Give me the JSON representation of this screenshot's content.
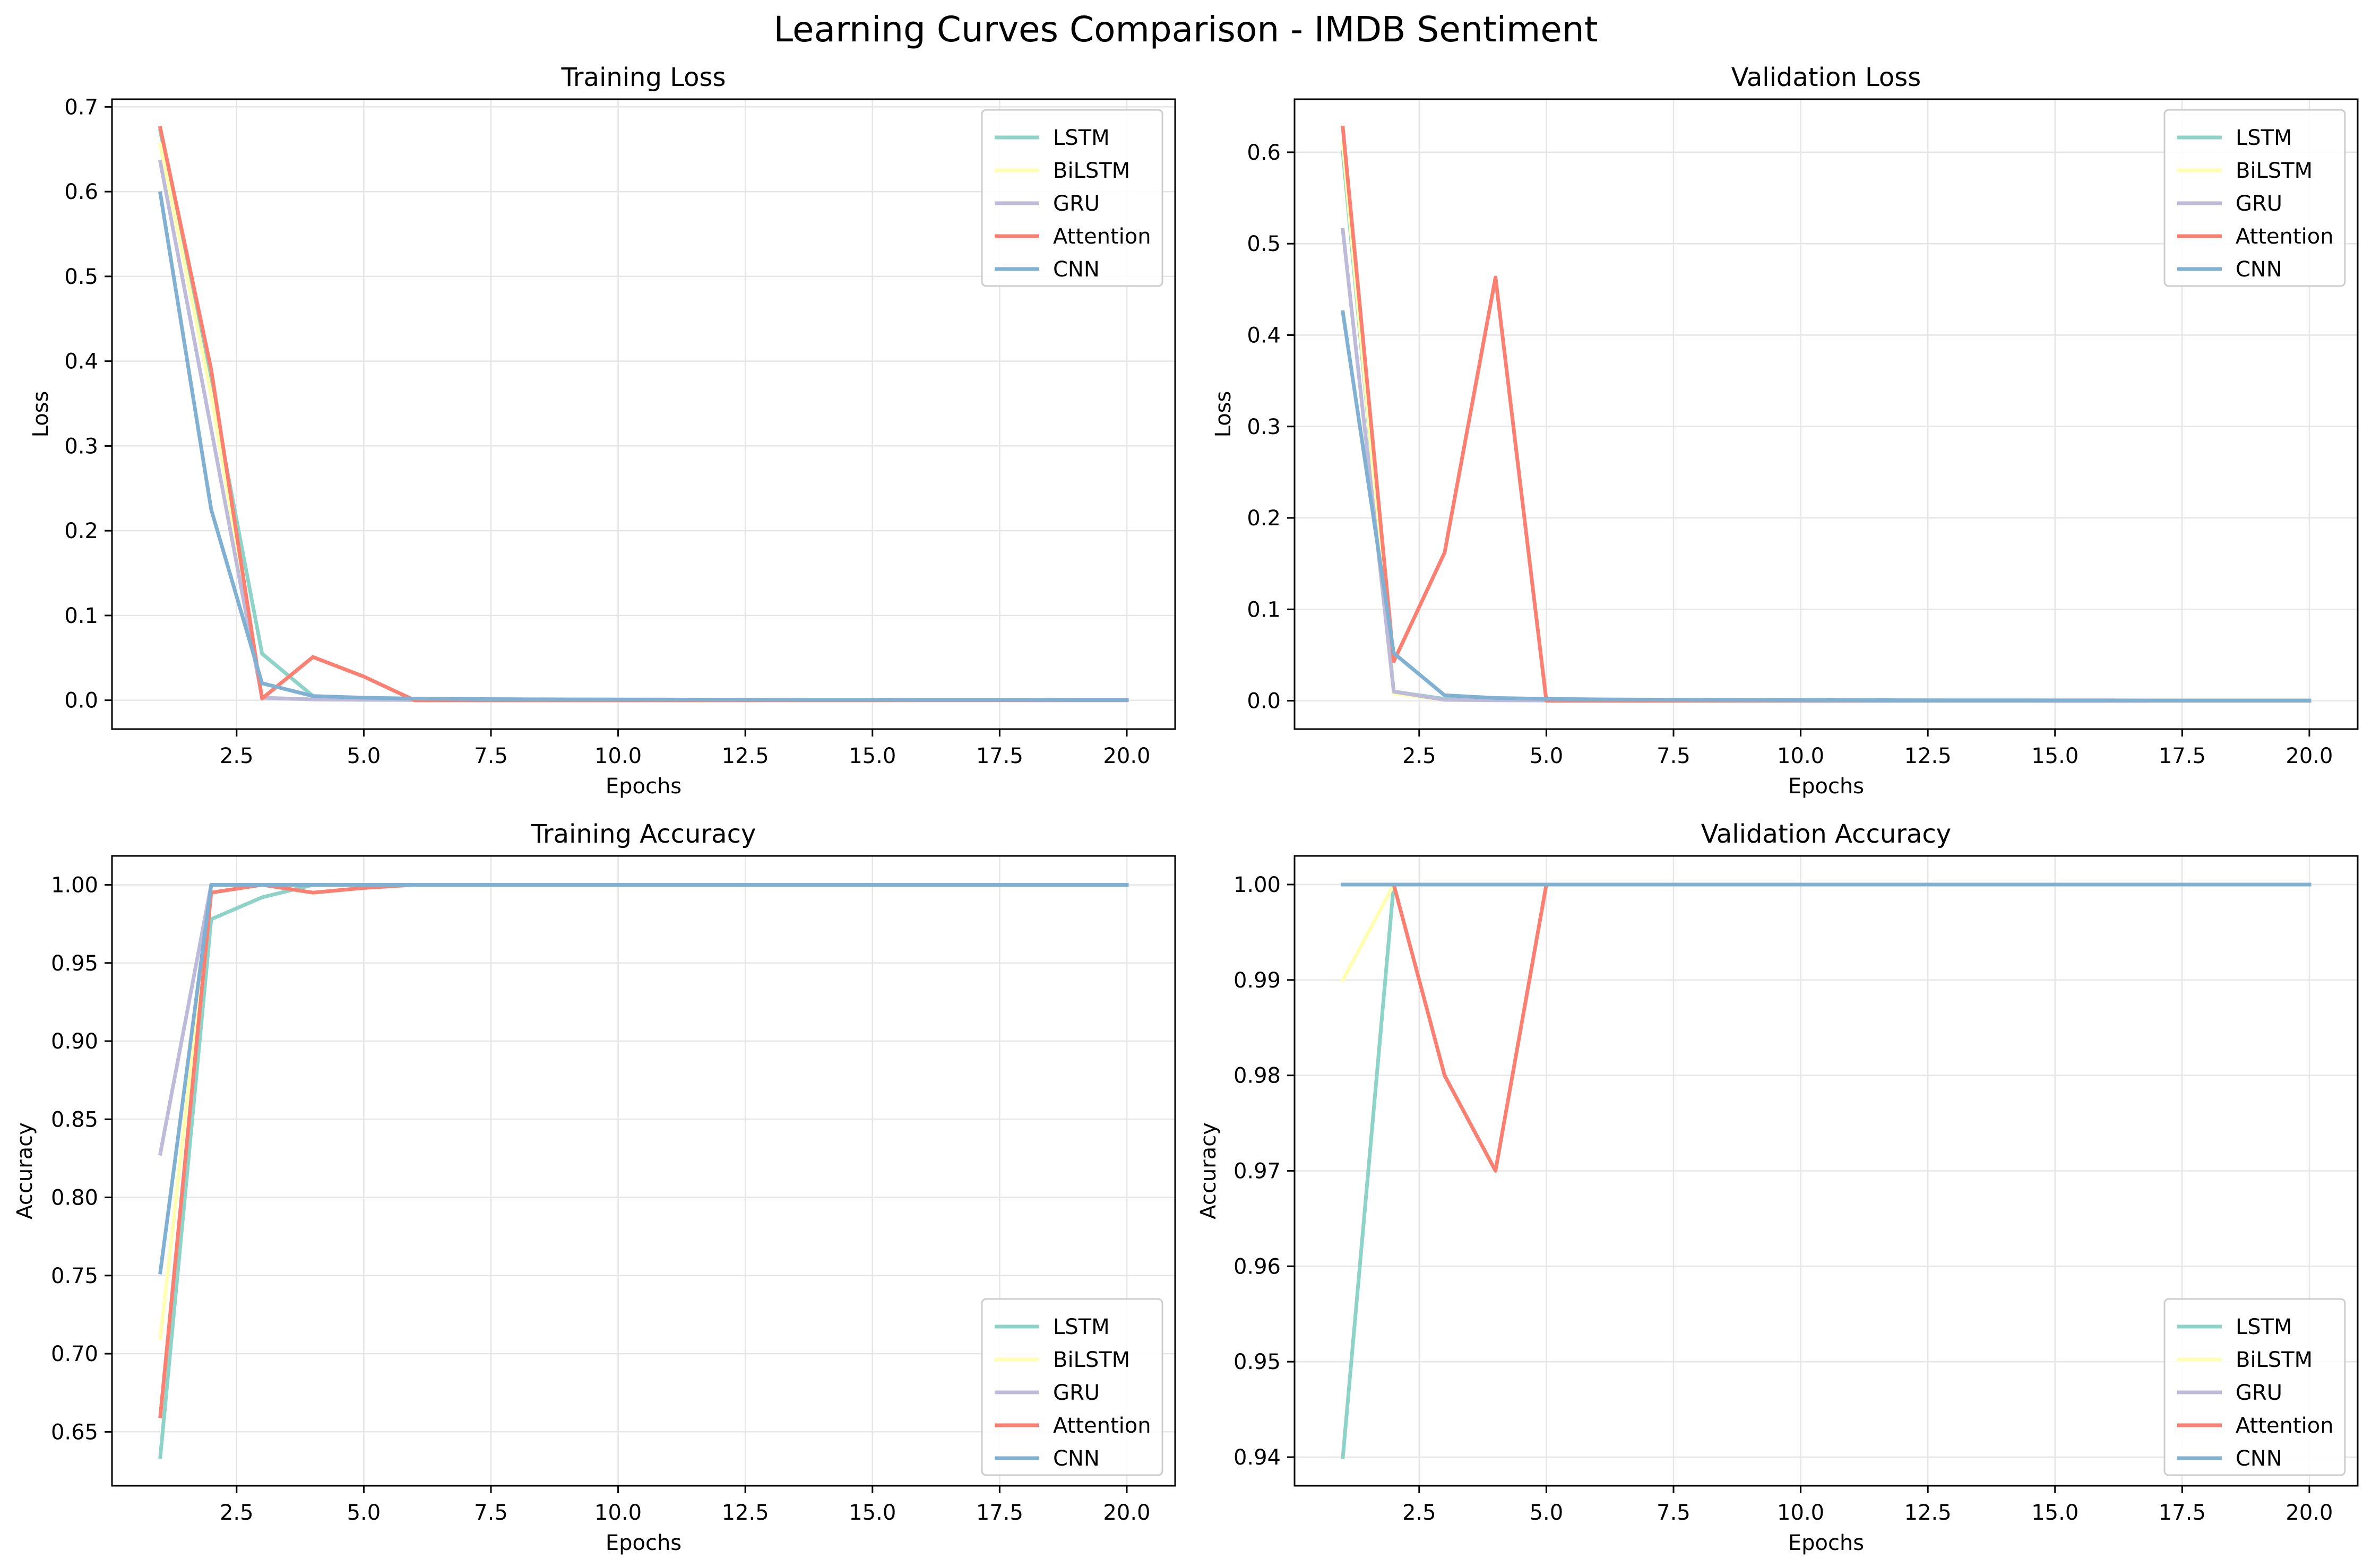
{
  "figure": {
    "title": "Learning Curves Comparison - IMDB Sentiment"
  },
  "colors": {
    "LSTM": "#8dd3c7",
    "BiLSTM": "#ffffb3",
    "GRU": "#bebada",
    "Attention": "#fb8072",
    "CNN": "#80b1d3",
    "grid": "#e6e6e6",
    "axis": "#000000"
  },
  "chart_data": [
    {
      "type": "line",
      "title": "Training Loss",
      "xlabel": "Epochs",
      "ylabel": "Loss",
      "xlim": [
        0.05,
        20.95
      ],
      "ylim": [
        -0.034,
        0.709
      ],
      "xticks": [
        2.5,
        5.0,
        7.5,
        10.0,
        12.5,
        15.0,
        17.5,
        20.0
      ],
      "xtick_labels": [
        "2.5",
        "5.0",
        "7.5",
        "10.0",
        "12.5",
        "15.0",
        "17.5",
        "20.0"
      ],
      "yticks": [
        0.0,
        0.1,
        0.2,
        0.3,
        0.4,
        0.5,
        0.6,
        0.7
      ],
      "ytick_labels": [
        "0.0",
        "0.1",
        "0.2",
        "0.3",
        "0.4",
        "0.5",
        "0.6",
        "0.7"
      ],
      "grid": true,
      "legend": "top-right",
      "x": [
        1,
        2,
        3,
        4,
        5,
        6,
        7,
        8,
        9,
        10,
        11,
        12,
        13,
        14,
        15,
        16,
        17,
        18,
        19,
        20
      ],
      "series": [
        {
          "name": "LSTM",
          "values": [
            0.672,
            0.37,
            0.055,
            0.005,
            0.002,
            0.001,
            0.001,
            0.001,
            0.001,
            0.0005,
            0.0005,
            0.0005,
            0.0004,
            0.0004,
            0.0003,
            0.0003,
            0.0003,
            0.0002,
            0.0002,
            0.0002
          ]
        },
        {
          "name": "BiLSTM",
          "values": [
            0.655,
            0.36,
            0.003,
            0.001,
            0.0005,
            0.0003,
            0.0002,
            0.0002,
            0.0001,
            0.0001,
            0.0001,
            0.0001,
            0.0001,
            0.0001,
            0.0001,
            0.0001,
            0.0001,
            0.0001,
            0.0001,
            0.0001
          ]
        },
        {
          "name": "GRU",
          "values": [
            0.635,
            0.32,
            0.003,
            0.001,
            0.0005,
            0.0003,
            0.0002,
            0.0002,
            0.0001,
            0.0001,
            0.0001,
            0.0001,
            0.0001,
            0.0001,
            0.0001,
            0.0001,
            0.0001,
            0.0001,
            0.0001,
            0.0001
          ]
        },
        {
          "name": "Attention",
          "values": [
            0.675,
            0.39,
            0.002,
            0.051,
            0.028,
            0.0,
            0.0,
            0.0,
            0.0,
            0.0,
            0.0,
            0.0,
            0.0,
            0.0,
            0.0,
            0.0,
            0.0,
            0.0,
            0.0,
            0.0
          ]
        },
        {
          "name": "CNN",
          "values": [
            0.598,
            0.225,
            0.02,
            0.005,
            0.003,
            0.002,
            0.0015,
            0.0012,
            0.001,
            0.0009,
            0.0008,
            0.0007,
            0.0006,
            0.0005,
            0.0005,
            0.0004,
            0.0004,
            0.0004,
            0.0003,
            0.0003
          ]
        }
      ]
    },
    {
      "type": "line",
      "title": "Validation Loss",
      "xlabel": "Epochs",
      "ylabel": "Loss",
      "xlim": [
        0.05,
        20.95
      ],
      "ylim": [
        -0.031,
        0.658
      ],
      "xticks": [
        2.5,
        5.0,
        7.5,
        10.0,
        12.5,
        15.0,
        17.5,
        20.0
      ],
      "xtick_labels": [
        "2.5",
        "5.0",
        "7.5",
        "10.0",
        "12.5",
        "15.0",
        "17.5",
        "20.0"
      ],
      "yticks": [
        0.0,
        0.1,
        0.2,
        0.3,
        0.4,
        0.5,
        0.6
      ],
      "ytick_labels": [
        "0.0",
        "0.1",
        "0.2",
        "0.3",
        "0.4",
        "0.5",
        "0.6"
      ],
      "grid": true,
      "legend": "top-right",
      "x": [
        1,
        2,
        3,
        4,
        5,
        6,
        7,
        8,
        9,
        10,
        11,
        12,
        13,
        14,
        15,
        16,
        17,
        18,
        19,
        20
      ],
      "series": [
        {
          "name": "LSTM",
          "values": [
            0.6,
            0.01,
            0.002,
            0.001,
            0.0005,
            0.0003,
            0.0002,
            0.0002,
            0.0001,
            0.0001,
            0.0001,
            0.0001,
            0.0001,
            0.0001,
            0.0001,
            0.0001,
            0.0001,
            0.0001,
            0.0001,
            0.0001
          ]
        },
        {
          "name": "BiLSTM",
          "values": [
            0.61,
            0.008,
            0.001,
            0.0005,
            0.0003,
            0.0002,
            0.0001,
            0.0001,
            0.0001,
            0.0001,
            0.0001,
            0.0001,
            0.0001,
            0.0001,
            0.0001,
            0.0001,
            0.0001,
            0.0001,
            0.0001,
            0.0001
          ]
        },
        {
          "name": "GRU",
          "values": [
            0.515,
            0.01,
            0.001,
            0.0005,
            0.0003,
            0.0002,
            0.0001,
            0.0001,
            0.0001,
            0.0001,
            0.0001,
            0.0001,
            0.0001,
            0.0001,
            0.0001,
            0.0001,
            0.0001,
            0.0001,
            0.0001,
            0.0001
          ]
        },
        {
          "name": "Attention",
          "values": [
            0.627,
            0.043,
            0.162,
            0.463,
            0.0,
            0.0,
            0.0,
            0.0,
            0.0,
            0.0,
            0.0,
            0.0,
            0.0,
            0.0,
            0.0,
            0.0,
            0.0,
            0.0,
            0.0,
            0.0
          ]
        },
        {
          "name": "CNN",
          "values": [
            0.425,
            0.052,
            0.006,
            0.003,
            0.002,
            0.0015,
            0.0012,
            0.001,
            0.0009,
            0.0008,
            0.0007,
            0.0006,
            0.0005,
            0.0005,
            0.0004,
            0.0004,
            0.0003,
            0.0003,
            0.0003,
            0.0003
          ]
        }
      ]
    },
    {
      "type": "line",
      "title": "Training Accuracy",
      "xlabel": "Epochs",
      "ylabel": "Accuracy",
      "xlim": [
        0.05,
        20.95
      ],
      "ylim": [
        0.6155,
        1.0185
      ],
      "xticks": [
        2.5,
        5.0,
        7.5,
        10.0,
        12.5,
        15.0,
        17.5,
        20.0
      ],
      "xtick_labels": [
        "2.5",
        "5.0",
        "7.5",
        "10.0",
        "12.5",
        "15.0",
        "17.5",
        "20.0"
      ],
      "yticks": [
        0.65,
        0.7,
        0.75,
        0.8,
        0.85,
        0.9,
        0.95,
        1.0
      ],
      "ytick_labels": [
        "0.65",
        "0.70",
        "0.75",
        "0.80",
        "0.85",
        "0.90",
        "0.95",
        "1.00"
      ],
      "grid": true,
      "legend": "bottom-right",
      "x": [
        1,
        2,
        3,
        4,
        5,
        6,
        7,
        8,
        9,
        10,
        11,
        12,
        13,
        14,
        15,
        16,
        17,
        18,
        19,
        20
      ],
      "series": [
        {
          "name": "LSTM",
          "values": [
            0.634,
            0.978,
            0.992,
            1.0,
            1.0,
            1.0,
            1.0,
            1.0,
            1.0,
            1.0,
            1.0,
            1.0,
            1.0,
            1.0,
            1.0,
            1.0,
            1.0,
            1.0,
            1.0,
            1.0
          ]
        },
        {
          "name": "BiLSTM",
          "values": [
            0.71,
            1.0,
            1.0,
            1.0,
            1.0,
            1.0,
            1.0,
            1.0,
            1.0,
            1.0,
            1.0,
            1.0,
            1.0,
            1.0,
            1.0,
            1.0,
            1.0,
            1.0,
            1.0,
            1.0
          ]
        },
        {
          "name": "GRU",
          "values": [
            0.828,
            1.0,
            1.0,
            1.0,
            1.0,
            1.0,
            1.0,
            1.0,
            1.0,
            1.0,
            1.0,
            1.0,
            1.0,
            1.0,
            1.0,
            1.0,
            1.0,
            1.0,
            1.0,
            1.0
          ]
        },
        {
          "name": "Attention",
          "values": [
            0.66,
            0.995,
            1.0,
            0.995,
            0.998,
            1.0,
            1.0,
            1.0,
            1.0,
            1.0,
            1.0,
            1.0,
            1.0,
            1.0,
            1.0,
            1.0,
            1.0,
            1.0,
            1.0,
            1.0
          ]
        },
        {
          "name": "CNN",
          "values": [
            0.752,
            1.0,
            1.0,
            1.0,
            1.0,
            1.0,
            1.0,
            1.0,
            1.0,
            1.0,
            1.0,
            1.0,
            1.0,
            1.0,
            1.0,
            1.0,
            1.0,
            1.0,
            1.0,
            1.0
          ]
        }
      ]
    },
    {
      "type": "line",
      "title": "Validation Accuracy",
      "xlabel": "Epochs",
      "ylabel": "Accuracy",
      "xlim": [
        0.05,
        20.95
      ],
      "ylim": [
        0.937,
        1.003
      ],
      "xticks": [
        2.5,
        5.0,
        7.5,
        10.0,
        12.5,
        15.0,
        17.5,
        20.0
      ],
      "xtick_labels": [
        "2.5",
        "5.0",
        "7.5",
        "10.0",
        "12.5",
        "15.0",
        "17.5",
        "20.0"
      ],
      "yticks": [
        0.94,
        0.95,
        0.96,
        0.97,
        0.98,
        0.99,
        1.0
      ],
      "ytick_labels": [
        "0.94",
        "0.95",
        "0.96",
        "0.97",
        "0.98",
        "0.99",
        "1.00"
      ],
      "grid": true,
      "legend": "bottom-right",
      "x": [
        1,
        2,
        3,
        4,
        5,
        6,
        7,
        8,
        9,
        10,
        11,
        12,
        13,
        14,
        15,
        16,
        17,
        18,
        19,
        20
      ],
      "series": [
        {
          "name": "LSTM",
          "values": [
            0.94,
            1.0,
            1.0,
            1.0,
            1.0,
            1.0,
            1.0,
            1.0,
            1.0,
            1.0,
            1.0,
            1.0,
            1.0,
            1.0,
            1.0,
            1.0,
            1.0,
            1.0,
            1.0,
            1.0
          ]
        },
        {
          "name": "BiLSTM",
          "values": [
            0.99,
            1.0,
            1.0,
            1.0,
            1.0,
            1.0,
            1.0,
            1.0,
            1.0,
            1.0,
            1.0,
            1.0,
            1.0,
            1.0,
            1.0,
            1.0,
            1.0,
            1.0,
            1.0,
            1.0
          ]
        },
        {
          "name": "GRU",
          "values": [
            1.0,
            1.0,
            1.0,
            1.0,
            1.0,
            1.0,
            1.0,
            1.0,
            1.0,
            1.0,
            1.0,
            1.0,
            1.0,
            1.0,
            1.0,
            1.0,
            1.0,
            1.0,
            1.0,
            1.0
          ]
        },
        {
          "name": "Attention",
          "values": [
            1.0,
            1.0,
            0.98,
            0.97,
            1.0,
            1.0,
            1.0,
            1.0,
            1.0,
            1.0,
            1.0,
            1.0,
            1.0,
            1.0,
            1.0,
            1.0,
            1.0,
            1.0,
            1.0,
            1.0
          ]
        },
        {
          "name": "CNN",
          "values": [
            1.0,
            1.0,
            1.0,
            1.0,
            1.0,
            1.0,
            1.0,
            1.0,
            1.0,
            1.0,
            1.0,
            1.0,
            1.0,
            1.0,
            1.0,
            1.0,
            1.0,
            1.0,
            1.0,
            1.0
          ]
        }
      ]
    }
  ]
}
